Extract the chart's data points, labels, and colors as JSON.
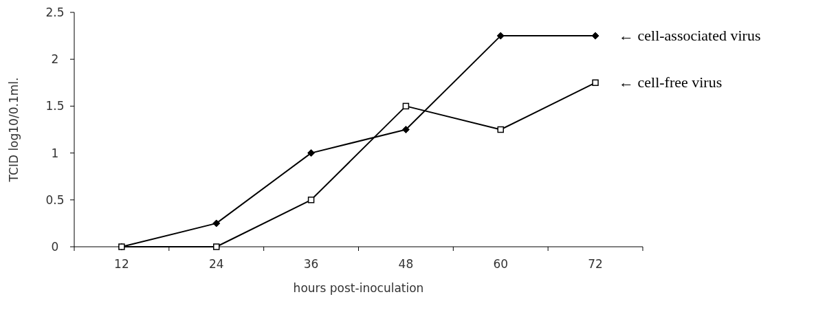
{
  "chart_data": {
    "type": "line",
    "xlabel": "hours post-inoculation",
    "ylabel": "TCID log10/0.1ml.",
    "categories": [
      "12",
      "24",
      "36",
      "48",
      "60",
      "72"
    ],
    "ylim": [
      0,
      2.5
    ],
    "yticks": [
      0,
      0.5,
      1,
      1.5,
      2,
      2.5
    ],
    "grid": false,
    "series": [
      {
        "name": "← cell-associated virus",
        "color": "#000000",
        "marker": "diamond",
        "values": [
          0,
          0.25,
          1,
          1.25,
          2.25,
          2.25
        ]
      },
      {
        "name": "← cell-free virus",
        "color": "#000000",
        "marker": "square",
        "values": [
          0,
          0,
          0.5,
          1.5,
          1.25,
          1.75
        ]
      }
    ]
  }
}
